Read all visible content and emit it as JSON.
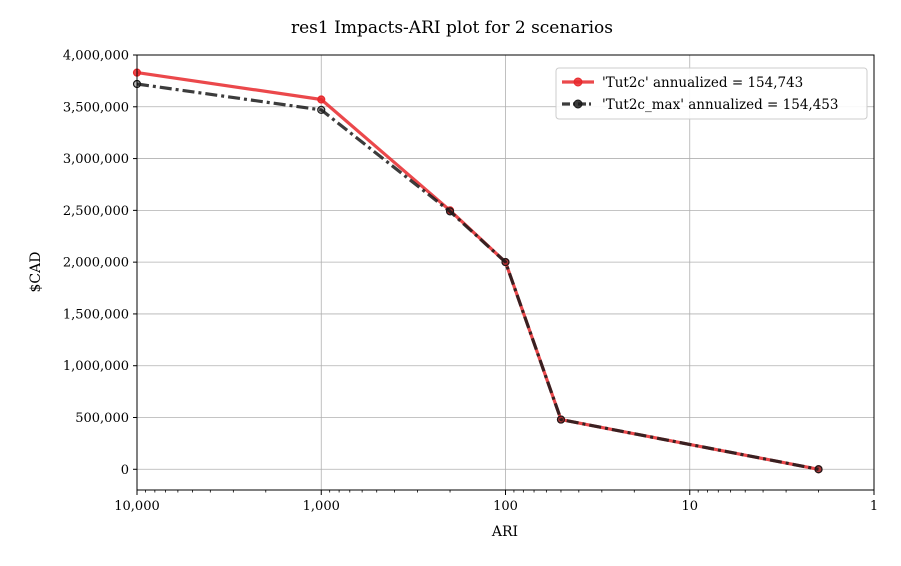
{
  "chart_data": {
    "type": "line",
    "title": "res1 Impacts-ARI plot for 2 scenarios",
    "xlabel": "ARI",
    "ylabel": "$CAD",
    "xscale": "log",
    "xaxis_inverted": true,
    "xlim": [
      10000,
      1
    ],
    "ylim": [
      -200000,
      4000000
    ],
    "x_ticks": [
      10000,
      1000,
      100,
      10,
      1
    ],
    "x_tick_labels": [
      "10,000",
      "1,000",
      "100",
      "10",
      "1"
    ],
    "y_ticks": [
      0,
      500000,
      1000000,
      1500000,
      2000000,
      2500000,
      3000000,
      3500000,
      4000000
    ],
    "y_tick_labels": [
      "0",
      "500,000",
      "1,000,000",
      "1,500,000",
      "2,000,000",
      "2,500,000",
      "3,000,000",
      "3,500,000",
      "4,000,000"
    ],
    "grid": true,
    "legend_position": "top-right",
    "series": [
      {
        "name": "'Tut2c' annualized = 154,743",
        "color": "#e8282b",
        "linestyle": "solid",
        "x": [
          10000,
          1000,
          200,
          100,
          50,
          2
        ],
        "y": [
          3830000,
          3570000,
          2500000,
          2000000,
          480000,
          0
        ]
      },
      {
        "name": "'Tut2c_max' annualized = 154,453",
        "color": "#1a1a1a",
        "linestyle": "dashdot",
        "x": [
          10000,
          1000,
          200,
          100,
          50,
          2
        ],
        "y": [
          3720000,
          3470000,
          2490000,
          2000000,
          480000,
          0
        ]
      }
    ]
  }
}
